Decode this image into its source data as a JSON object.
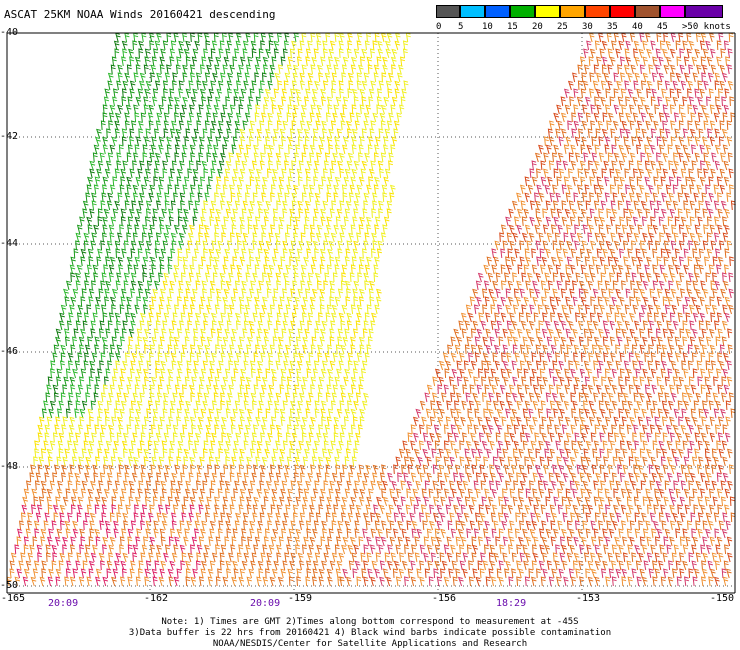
{
  "title": "ASCAT 25KM NOAA Winds 20160421 descending",
  "colorbar": {
    "labels": [
      "0",
      "5",
      "10",
      "15",
      "20",
      "25",
      "30",
      "35",
      "40",
      "45",
      ">50 knots"
    ],
    "colors": [
      "#555555",
      "#00bfff",
      "#0060ff",
      "#00b000",
      "#ffff00",
      "#ffa500",
      "#ff4500",
      "#ff0000",
      "#a0522d",
      "#ff00ff",
      "#6a00a8"
    ]
  },
  "axes": {
    "lat_labels": [
      "-40",
      "-42",
      "-44",
      "-46",
      "-48",
      "-50"
    ],
    "lon_labels": [
      "-165",
      "-162",
      "-159",
      "-156",
      "-153",
      "-150"
    ],
    "time_labels": [
      "20:09",
      "20:09",
      "18:29"
    ]
  },
  "notes": {
    "line1": "Note: 1) Times are GMT 2)Times along bottom correspond to measurement at -45S",
    "line2": "3)Data buffer is 22 hrs from 20160421 4) Black wind barbs indicate possible contamination",
    "line3": "NOAA/NESDIS/Center for Satellite Applications and Research"
  }
}
